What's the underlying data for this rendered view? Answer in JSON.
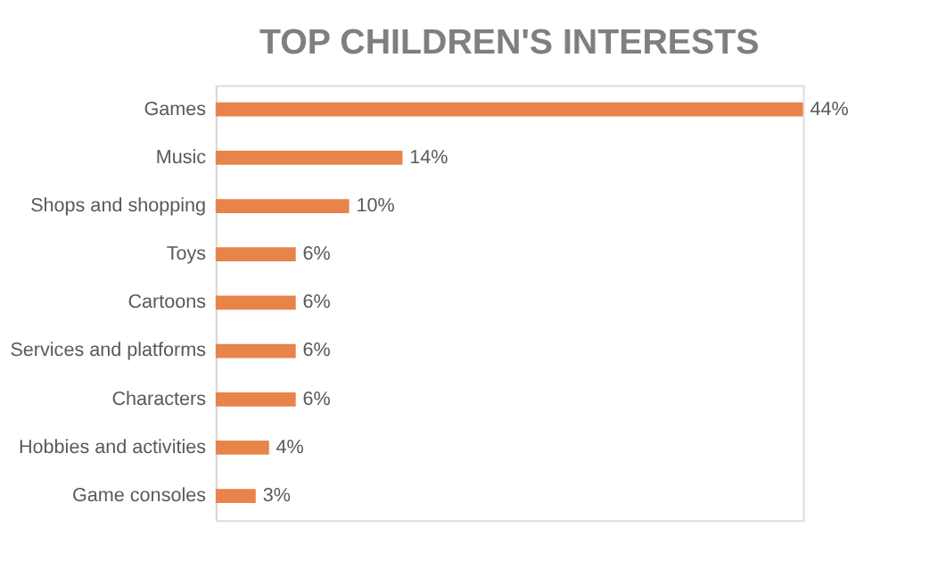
{
  "chart_data": {
    "type": "bar",
    "orientation": "horizontal",
    "title": "TOP CHILDREN'S INTERESTS",
    "categories": [
      "Games",
      "Music",
      "Shops and shopping",
      "Toys",
      "Cartoons",
      "Services and platforms",
      "Characters",
      "Hobbies and activities",
      "Game consoles"
    ],
    "values": [
      44,
      14,
      10,
      6,
      6,
      6,
      6,
      4,
      3
    ],
    "value_labels": [
      "44%",
      "14%",
      "10%",
      "6%",
      "6%",
      "6%",
      "6%",
      "4%",
      "3%"
    ],
    "color": "#e8834a",
    "grid": false
  }
}
